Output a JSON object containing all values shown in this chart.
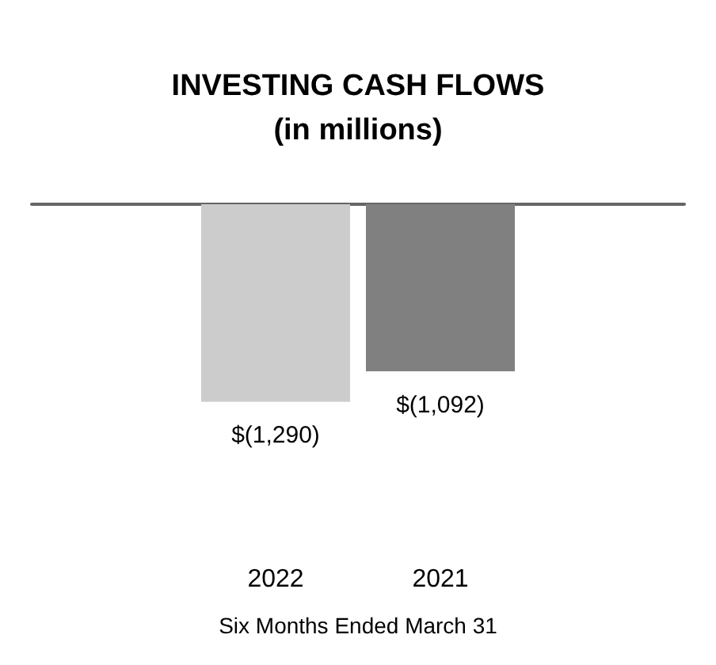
{
  "chart_data": {
    "type": "bar",
    "title": "INVESTING CASH FLOWS",
    "subtitle": "(in millions)",
    "xlabel": "Six Months Ended March 31",
    "categories": [
      "2022",
      "2021"
    ],
    "values": [
      -1290,
      -1092
    ],
    "colors": [
      "#cccccc",
      "#808080"
    ],
    "value_labels": [
      "$(1,290)",
      "$(1,092)"
    ]
  }
}
